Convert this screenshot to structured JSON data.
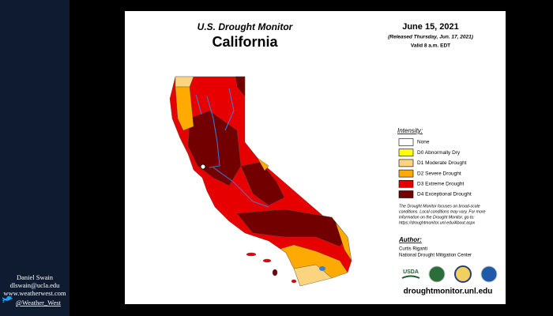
{
  "sidebar": {
    "name": "Daniel Swain",
    "email": "dlswain@ucla.edu",
    "website": "www.weatherwest.com",
    "twitter": "@Weather_West"
  },
  "map": {
    "title": "U.S. Drought Monitor",
    "region": "California",
    "date": "June 15, 2021",
    "released": "(Released Thursday, Jun. 17, 2021)",
    "valid": "Valid 8 a.m. EDT",
    "legend": {
      "title": "Intensity:",
      "items": [
        {
          "label": "None",
          "color": "#ffffff"
        },
        {
          "label": "D0 Abnormally Dry",
          "color": "#ffff00"
        },
        {
          "label": "D1 Moderate Drought",
          "color": "#fcd37f"
        },
        {
          "label": "D2 Severe Drought",
          "color": "#ffaa00"
        },
        {
          "label": "D3 Extreme Drought",
          "color": "#e60000"
        },
        {
          "label": "D4 Exceptional Drought",
          "color": "#730000"
        }
      ]
    },
    "note": [
      "The Drought Monitor focuses on broad-scale",
      "conditions. Local conditions may vary. For more",
      "information on the Drought Monitor, go to:",
      "https://droughtmonitor.unl.edu/About.aspx"
    ],
    "author": {
      "heading": "Author:",
      "name": "Curtis Riganti",
      "org": "National Drought Mitigation Center"
    },
    "logo": "USDA",
    "url": "droughtmonitor.unl.edu"
  }
}
